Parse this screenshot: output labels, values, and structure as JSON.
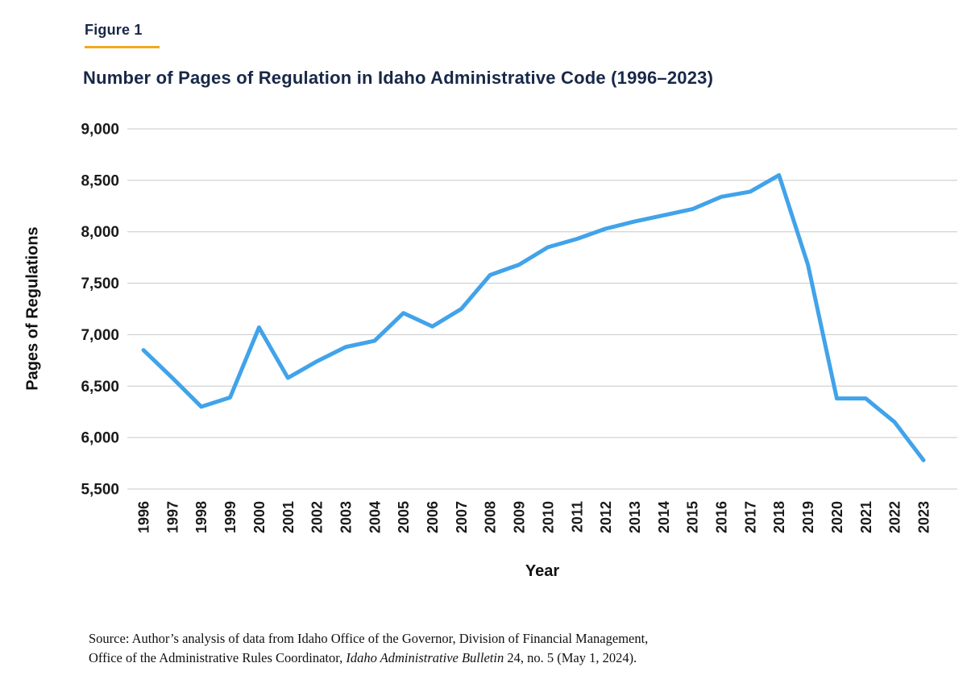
{
  "header": {
    "figure_label": "Figure 1",
    "title": "Number of Pages of Regulation in Idaho Administrative Code (1996–2023)"
  },
  "chart_data": {
    "type": "line",
    "title": "Number of Pages of Regulation in Idaho Administrative Code (1996–2023)",
    "xlabel": "Year",
    "ylabel": "Pages of Regulations",
    "x": [
      1996,
      1997,
      1998,
      1999,
      2000,
      2001,
      2002,
      2003,
      2004,
      2005,
      2006,
      2007,
      2008,
      2009,
      2010,
      2011,
      2012,
      2013,
      2014,
      2015,
      2016,
      2017,
      2018,
      2019,
      2020,
      2021,
      2022,
      2023
    ],
    "values": [
      6850,
      6580,
      6300,
      6390,
      7070,
      6580,
      6740,
      6880,
      6940,
      7210,
      7080,
      7250,
      7580,
      7680,
      7850,
      7930,
      8030,
      8100,
      8160,
      8220,
      8340,
      8390,
      8550,
      7680,
      6380,
      6380,
      6150,
      5780
    ],
    "ylim": [
      5500,
      9000
    ],
    "ytick_values": [
      5500,
      6000,
      6500,
      7000,
      7500,
      8000,
      8500,
      9000
    ],
    "ytick_labels": [
      "5,500",
      "6,000",
      "6,500",
      "7,000",
      "7,500",
      "8,000",
      "8,500",
      "9,000"
    ],
    "grid": "horizontal",
    "legend": "none",
    "line_color": "#41A3EA"
  },
  "colors": {
    "title_navy": "#182848",
    "accent_gold": "#F5A81E",
    "line_blue": "#41A3EA",
    "gridline_gray": "#C8C8C8"
  },
  "source": {
    "line1": "Source: Author’s analysis of data from Idaho Office of the Governor, Division of Financial Management,",
    "line2_before": "Office of the Administrative Rules Coordinator, ",
    "line2_italic": "Idaho Administrative Bulletin",
    "line2_after": " 24, no. 5 (May 1, 2024)."
  }
}
